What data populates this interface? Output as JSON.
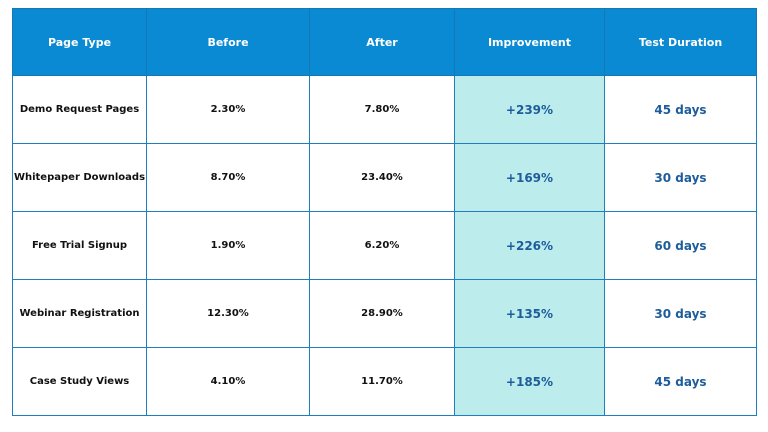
{
  "table": {
    "header": [
      "Page Type",
      "Before",
      "After",
      "Improvement",
      "Test Duration"
    ],
    "rows": [
      [
        "Demo Request Pages",
        "2.30%",
        "7.80%",
        "+239%",
        "45 days"
      ],
      [
        "Whitepaper Downloads",
        "8.70%",
        "23.40%",
        "+169%",
        "30 days"
      ],
      [
        "Free Trial Signup",
        "1.90%",
        "6.20%",
        "+226%",
        "60 days"
      ],
      [
        "Webinar Registration",
        "12.30%",
        "28.90%",
        "+135%",
        "30 days"
      ],
      [
        "Case Study Views",
        "4.10%",
        "11.70%",
        "+185%",
        "45 days"
      ]
    ]
  }
}
